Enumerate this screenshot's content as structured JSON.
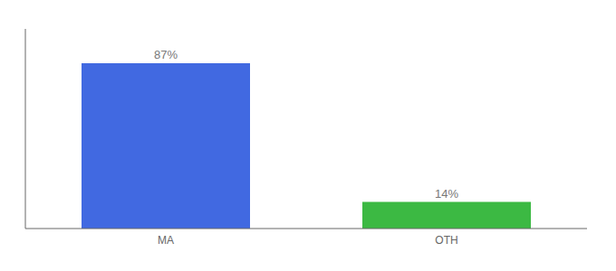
{
  "chart_data": {
    "type": "bar",
    "categories": [
      "MA",
      "OTH"
    ],
    "values": [
      87,
      14
    ],
    "value_labels": [
      "87%",
      "14%"
    ],
    "colors": [
      "#4169E1",
      "#3CB943"
    ],
    "ylim": [
      0,
      105
    ],
    "tick_labels": "x",
    "data_labels": true,
    "grid": false
  }
}
